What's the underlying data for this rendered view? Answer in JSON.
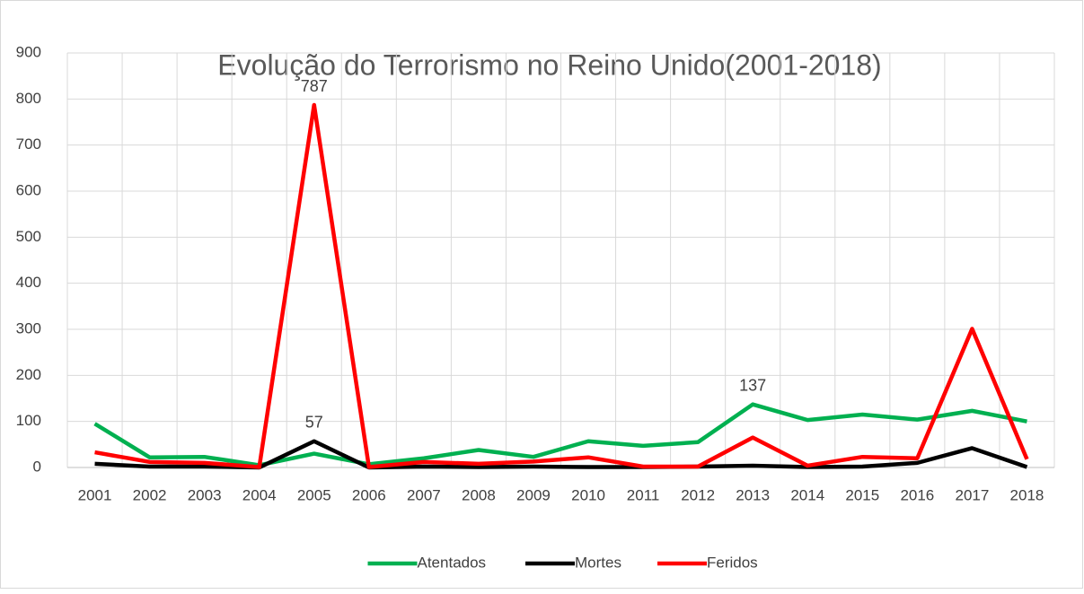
{
  "chart_data": {
    "type": "line",
    "title": "Evolução do Terrorismo no Reino Unido(2001-2018)",
    "categories": [
      "2001",
      "2002",
      "2003",
      "2004",
      "2005",
      "2006",
      "2007",
      "2008",
      "2009",
      "2010",
      "2011",
      "2012",
      "2013",
      "2014",
      "2015",
      "2016",
      "2017",
      "2018"
    ],
    "series": [
      {
        "name": "Atentados",
        "color": "#00b050",
        "values": [
          95,
          22,
          23,
          5,
          30,
          7,
          20,
          38,
          23,
          57,
          47,
          55,
          137,
          103,
          115,
          104,
          123,
          100
        ],
        "value_labels": [
          null,
          null,
          null,
          null,
          null,
          null,
          null,
          null,
          null,
          null,
          null,
          null,
          "137",
          null,
          null,
          null,
          null,
          null
        ]
      },
      {
        "name": "Mortes",
        "color": "#000000",
        "values": [
          8,
          2,
          2,
          0,
          57,
          0,
          2,
          1,
          2,
          1,
          1,
          2,
          4,
          1,
          2,
          10,
          42,
          1
        ],
        "value_labels": [
          null,
          null,
          null,
          null,
          "57",
          null,
          null,
          null,
          null,
          null,
          null,
          null,
          null,
          null,
          null,
          null,
          null,
          null
        ]
      },
      {
        "name": "Feridos",
        "color": "#ff0000",
        "values": [
          33,
          12,
          10,
          1,
          787,
          1,
          12,
          8,
          13,
          22,
          2,
          2,
          65,
          4,
          23,
          20,
          301,
          18
        ],
        "value_labels": [
          null,
          null,
          null,
          null,
          "787",
          null,
          null,
          null,
          null,
          null,
          null,
          null,
          null,
          null,
          null,
          null,
          null,
          null
        ]
      }
    ],
    "ylim": [
      0,
      900
    ],
    "yticks": [
      0,
      100,
      200,
      300,
      400,
      500,
      600,
      700,
      800,
      900
    ],
    "grid": true,
    "legend": "bottom"
  }
}
